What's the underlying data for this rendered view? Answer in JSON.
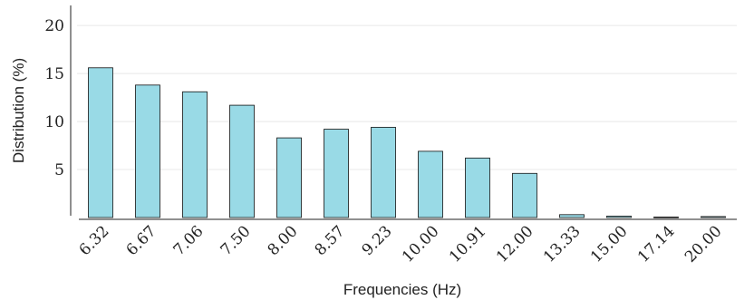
{
  "chart_data": {
    "type": "bar",
    "xlabel": "Frequencies (Hz)",
    "ylabel": "Distribution (%)",
    "ylim": [
      0,
      22
    ],
    "yticks": [
      5,
      10,
      15,
      20
    ],
    "grid": true,
    "bar_color": "#99dae6",
    "categories": [
      "6.32",
      "6.67",
      "7.06",
      "7.50",
      "8.00",
      "8.57",
      "9.23",
      "10.00",
      "10.91",
      "12.00",
      "13.33",
      "15.00",
      "17.14",
      "20.00"
    ],
    "values": [
      15.6,
      13.8,
      13.1,
      11.7,
      8.3,
      9.2,
      9.4,
      6.9,
      6.2,
      4.6,
      0.3,
      0.15,
      0.05,
      0.1
    ]
  }
}
